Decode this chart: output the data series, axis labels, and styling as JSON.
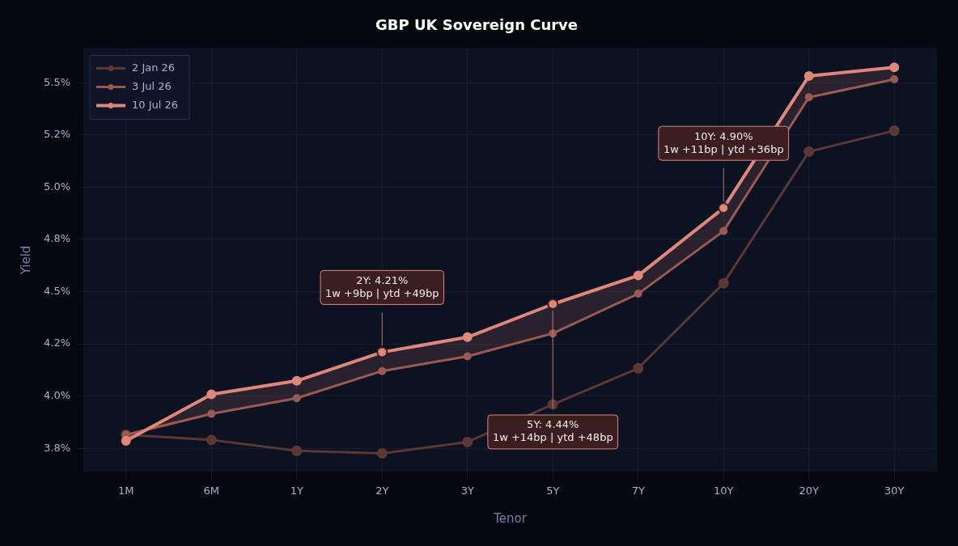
{
  "chart_data": {
    "type": "line",
    "title": "GBP UK Sovereign Curve",
    "xlabel": "Tenor",
    "ylabel": "Yield",
    "categories": [
      "1M",
      "6M",
      "1Y",
      "2Y",
      "3Y",
      "5Y",
      "7Y",
      "10Y",
      "20Y",
      "30Y"
    ],
    "series": [
      {
        "name": "2 Jan 26",
        "color": "#5c3835",
        "values": [
          3.815,
          3.79,
          3.738,
          3.726,
          3.78,
          3.96,
          4.133,
          4.54,
          5.17,
          5.27
        ]
      },
      {
        "name": "3 Jul 26",
        "color": "#9a5a52",
        "values": [
          3.815,
          3.915,
          3.99,
          4.12,
          4.19,
          4.3,
          4.49,
          4.79,
          5.43,
          5.516
        ]
      },
      {
        "name": "10 Jul 26",
        "color": "#e0877c",
        "values": [
          3.786,
          4.008,
          4.073,
          4.21,
          4.282,
          4.44,
          4.577,
          4.9,
          5.532,
          5.573
        ],
        "lower": [
          3.815,
          3.915,
          3.99,
          4.12,
          4.19,
          4.3,
          4.49,
          4.79,
          5.43,
          5.516
        ],
        "upper": [
          3.786,
          4.008,
          4.073,
          4.21,
          4.282,
          4.44,
          4.577,
          4.9,
          5.532,
          5.573
        ]
      }
    ],
    "ylim": [
      3.637,
      5.665
    ],
    "yticks": [
      {
        "value": 3.75,
        "label": "3.8%"
      },
      {
        "value": 4.0,
        "label": "4.0%"
      },
      {
        "value": 4.25,
        "label": "4.2%"
      },
      {
        "value": 4.5,
        "label": "4.5%"
      },
      {
        "value": 4.75,
        "label": "4.8%"
      },
      {
        "value": 5.0,
        "label": "5.0%"
      },
      {
        "value": 5.25,
        "label": "5.2%"
      },
      {
        "value": 5.5,
        "label": "5.5%"
      }
    ],
    "annotations": [
      {
        "text": "2Y: 4.21%\n1w +9bp | ytd +49bp",
        "x": "2Y",
        "y": 4.21
      },
      {
        "text": "5Y: 4.44%\n1w +14bp | ytd +48bp",
        "x": "5Y",
        "y": 4.44
      },
      {
        "text": "10Y: 4.90%\n1w +11bp | ytd +36bp",
        "x": "10Y",
        "y": 4.9
      }
    ],
    "grid": true,
    "legend": "top left",
    "marker": "circle",
    "line_style": "solid"
  }
}
